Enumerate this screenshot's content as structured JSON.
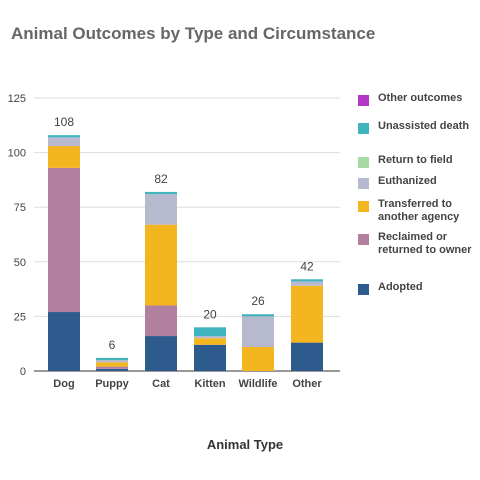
{
  "chart_data": {
    "type": "bar",
    "stacked": true,
    "title": "Animal Outcomes by Type and Circumstance",
    "xlabel": "Animal Type",
    "ylabel": "",
    "ylim": [
      0,
      125
    ],
    "yticks": [
      0,
      25,
      50,
      75,
      100,
      125
    ],
    "grid": true,
    "legend_position": "right",
    "categories": [
      "Dog",
      "Puppy",
      "Cat",
      "Kitten",
      "Wildlife",
      "Other"
    ],
    "totals": [
      108,
      6,
      82,
      20,
      26,
      42
    ],
    "series": [
      {
        "name": "Adopted",
        "color": "#2e5b8e",
        "values": [
          27,
          1,
          16,
          12,
          0,
          13
        ]
      },
      {
        "name": "Reclaimed or returned to owner",
        "color": "#b2809f",
        "values": [
          66,
          1,
          14,
          0,
          0,
          0
        ]
      },
      {
        "name": "Transferred to another agency",
        "color": "#f3b61f",
        "values": [
          10,
          2,
          37,
          3,
          11,
          26
        ]
      },
      {
        "name": "Euthanized",
        "color": "#b7b9cf",
        "values": [
          4,
          1,
          14,
          1,
          14,
          2
        ]
      },
      {
        "name": "Return to field",
        "color": "#a9d9a4",
        "values": [
          0,
          0,
          0,
          0,
          0,
          0
        ]
      },
      {
        "name": "Unassisted death",
        "color": "#40b5c0",
        "values": [
          1,
          1,
          1,
          4,
          1,
          1
        ]
      },
      {
        "name": "Other outcomes",
        "color": "#b436c5",
        "values": [
          0,
          0,
          0,
          0,
          0,
          0
        ]
      }
    ]
  },
  "legend_order": [
    "Other outcomes",
    "Unassisted death",
    "Return to field",
    "Euthanized",
    "Transferred to another agency",
    "Reclaimed or returned to owner",
    "Adopted"
  ]
}
